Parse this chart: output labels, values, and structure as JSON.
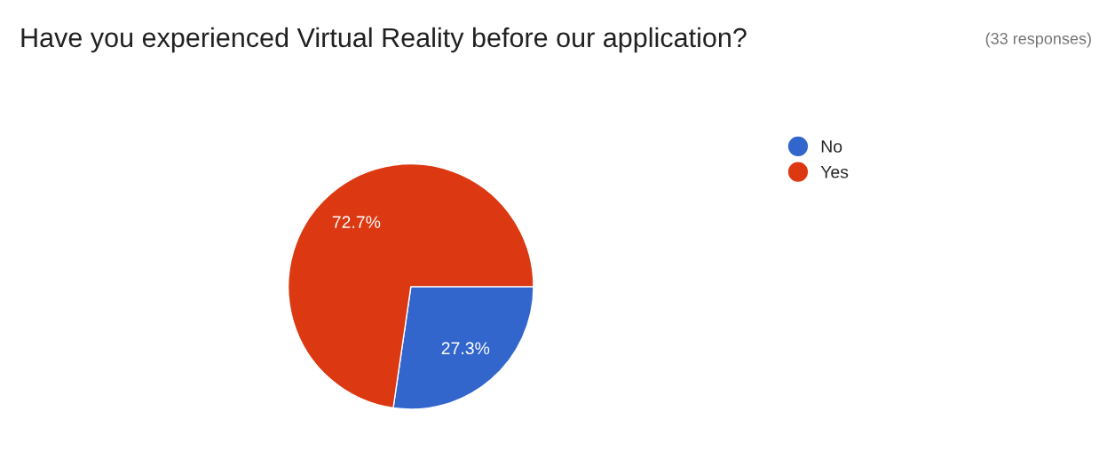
{
  "chart_data": {
    "type": "pie",
    "title": "Have you experienced Virtual Reality before our application?",
    "subtitle": "(33 responses)",
    "categories": [
      "No",
      "Yes"
    ],
    "values": [
      27.3,
      72.7
    ],
    "colors": [
      "#3366cc",
      "#dc3912"
    ],
    "value_labels": [
      "27.3%",
      "72.7%"
    ],
    "legend": "top right"
  }
}
